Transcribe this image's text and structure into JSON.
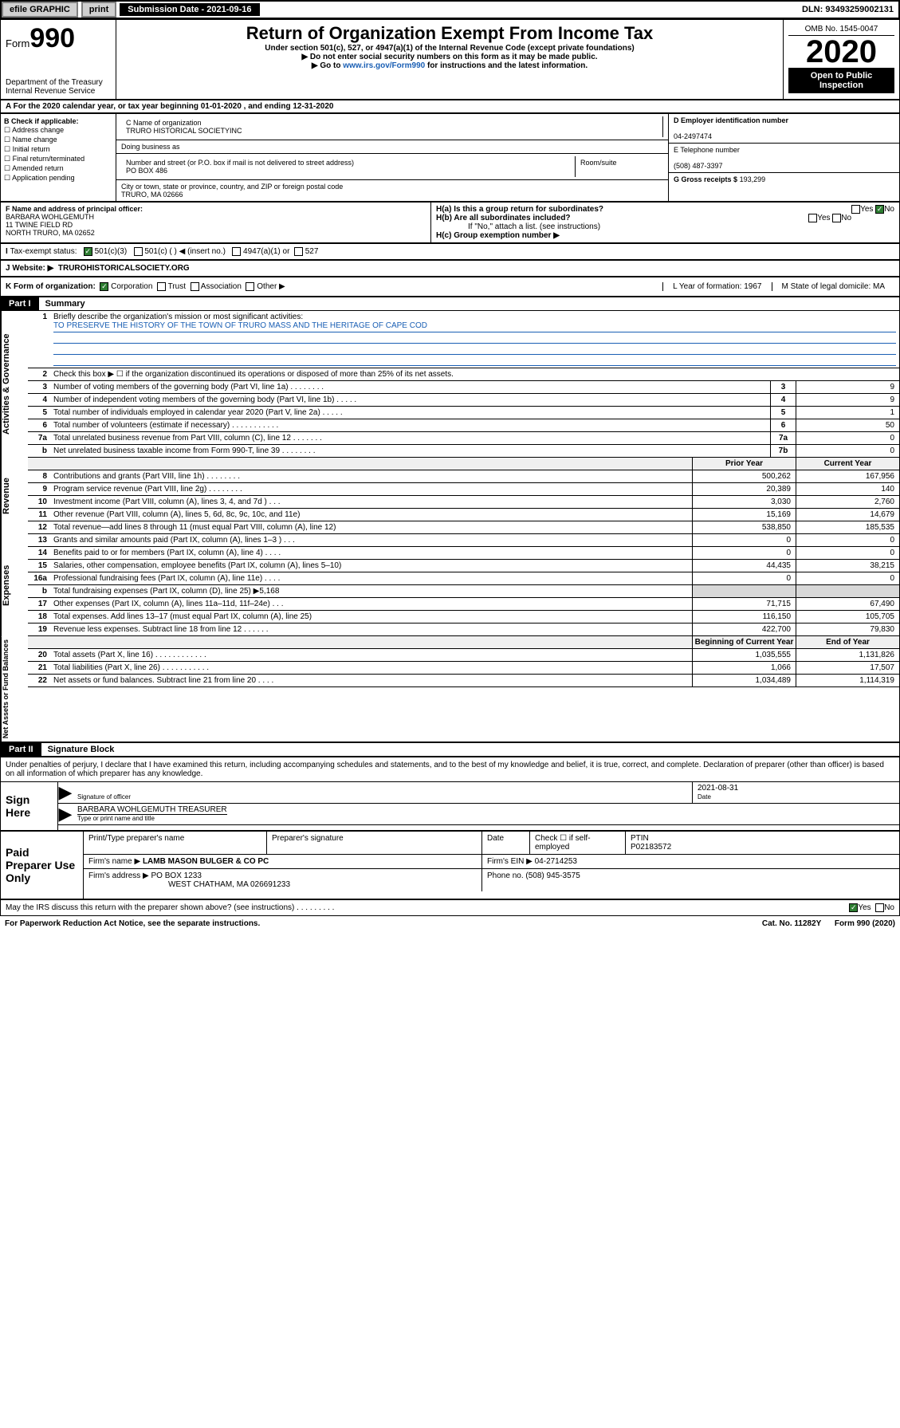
{
  "top": {
    "efile": "efile GRAPHIC",
    "print": "print",
    "submission": "Submission Date - 2021-09-16",
    "dln": "DLN: 93493259002131"
  },
  "header": {
    "form": "Form",
    "num": "990",
    "dept": "Department of the Treasury\nInternal Revenue Service",
    "title": "Return of Organization Exempt From Income Tax",
    "sub1": "Under section 501(c), 527, or 4947(a)(1) of the Internal Revenue Code (except private foundations)",
    "sub2": "Do not enter social security numbers on this form as it may be made public.",
    "sub3_pre": "Go to ",
    "sub3_link": "www.irs.gov/Form990",
    "sub3_post": " for instructions and the latest information.",
    "omb": "OMB No. 1545-0047",
    "year": "2020",
    "open": "Open to Public Inspection"
  },
  "periodA": "For the 2020 calendar year, or tax year beginning 01-01-2020    , and ending 12-31-2020",
  "boxB": {
    "title": "B Check if applicable:",
    "items": [
      "Address change",
      "Name change",
      "Initial return",
      "Final return/terminated",
      "Amended return",
      "Application pending"
    ]
  },
  "boxC": {
    "label": "C Name of organization",
    "name": "TRURO HISTORICAL SOCIETYINC",
    "dba_label": "Doing business as",
    "addr_label": "Number and street (or P.O. box if mail is not delivered to street address)",
    "room_label": "Room/suite",
    "addr": "PO BOX 486",
    "city_label": "City or town, state or province, country, and ZIP or foreign postal code",
    "city": "TRURO, MA  02666"
  },
  "boxD": {
    "label": "D Employer identification number",
    "val": "04-2497474"
  },
  "boxE": {
    "label": "E Telephone number",
    "val": "(508) 487-3397"
  },
  "boxG": {
    "label": "G Gross receipts $",
    "val": "193,299"
  },
  "boxF": {
    "label": "F  Name and address of principal officer:",
    "name": "BARBARA WOHLGEMUTH",
    "addr1": "11 TWINE FIELD RD",
    "addr2": "NORTH TRURO, MA  02652"
  },
  "boxH": {
    "a": "H(a)  Is this a group return for subordinates?",
    "b": "H(b)  Are all subordinates included?",
    "note": "If \"No,\" attach a list. (see instructions)",
    "c": "H(c)  Group exemption number ▶"
  },
  "taxI": {
    "label": "Tax-exempt status:",
    "c3": "501(c)(3)",
    "c": "501(c) (  ) ◀ (insert no.)",
    "a47": "4947(a)(1) or",
    "s527": "527"
  },
  "rowJ": {
    "label": "Website: ▶",
    "val": "TRUROHISTORICALSOCIETY.ORG"
  },
  "rowK": {
    "label": "K Form of organization:",
    "opts": [
      "Corporation",
      "Trust",
      "Association",
      "Other ▶"
    ],
    "L": "L Year of formation: 1967",
    "M": "M State of legal domicile: MA"
  },
  "part1": {
    "tag": "Part I",
    "title": "Summary"
  },
  "gov": {
    "label": "Activities & Governance",
    "l1": "Briefly describe the organization's mission or most significant activities:",
    "mission": "TO PRESERVE THE HISTORY OF THE TOWN OF TRURO MASS AND THE HERITAGE OF CAPE COD",
    "l2": "Check this box ▶ ☐  if the organization discontinued its operations or disposed of more than 25% of its net assets.",
    "rows": [
      {
        "n": "3",
        "d": "Number of voting members of the governing body (Part VI, line 1a)   .   .   .   .   .   .   .   .",
        "sm": "3",
        "v": "9"
      },
      {
        "n": "4",
        "d": "Number of independent voting members of the governing body (Part VI, line 1b)   .   .   .   .   .",
        "sm": "4",
        "v": "9"
      },
      {
        "n": "5",
        "d": "Total number of individuals employed in calendar year 2020 (Part V, line 2a)   .   .   .   .   .",
        "sm": "5",
        "v": "1"
      },
      {
        "n": "6",
        "d": "Total number of volunteers (estimate if necessary)   .   .   .   .   .   .   .   .   .   .   .",
        "sm": "6",
        "v": "50"
      },
      {
        "n": "7a",
        "d": "Total unrelated business revenue from Part VIII, column (C), line 12   .   .   .   .   .   .   .",
        "sm": "7a",
        "v": "0"
      },
      {
        "n": "b",
        "d": "Net unrelated business taxable income from Form 990-T, line 39   .   .   .   .   .   .   .   .",
        "sm": "7b",
        "v": "0"
      }
    ]
  },
  "heads": {
    "prior": "Prior Year",
    "current": "Current Year",
    "bcy": "Beginning of Current Year",
    "eoy": "End of Year"
  },
  "rev": {
    "label": "Revenue",
    "rows": [
      {
        "n": "8",
        "d": "Contributions and grants (Part VIII, line 1h)   .   .   .   .   .   .   .   .",
        "v1": "500,262",
        "v2": "167,956"
      },
      {
        "n": "9",
        "d": "Program service revenue (Part VIII, line 2g)   .   .   .   .   .   .   .   .",
        "v1": "20,389",
        "v2": "140"
      },
      {
        "n": "10",
        "d": "Investment income (Part VIII, column (A), lines 3, 4, and 7d )   .   .   .",
        "v1": "3,030",
        "v2": "2,760"
      },
      {
        "n": "11",
        "d": "Other revenue (Part VIII, column (A), lines 5, 6d, 8c, 9c, 10c, and 11e)",
        "v1": "15,169",
        "v2": "14,679"
      },
      {
        "n": "12",
        "d": "Total revenue—add lines 8 through 11 (must equal Part VIII, column (A), line 12)",
        "v1": "538,850",
        "v2": "185,535"
      }
    ]
  },
  "exp": {
    "label": "Expenses",
    "rows": [
      {
        "n": "13",
        "d": "Grants and similar amounts paid (Part IX, column (A), lines 1–3 )   .   .   .",
        "v1": "0",
        "v2": "0"
      },
      {
        "n": "14",
        "d": "Benefits paid to or for members (Part IX, column (A), line 4)   .   .   .   .",
        "v1": "0",
        "v2": "0"
      },
      {
        "n": "15",
        "d": "Salaries, other compensation, employee benefits (Part IX, column (A), lines 5–10)",
        "v1": "44,435",
        "v2": "38,215"
      },
      {
        "n": "16a",
        "d": "Professional fundraising fees (Part IX, column (A), line 11e)   .   .   .   .",
        "v1": "0",
        "v2": "0"
      },
      {
        "n": "b",
        "d": "Total fundraising expenses (Part IX, column (D), line 25) ▶5,168",
        "v1": "",
        "v2": "",
        "grey": true
      },
      {
        "n": "17",
        "d": "Other expenses (Part IX, column (A), lines 11a–11d, 11f–24e)   .   .   .",
        "v1": "71,715",
        "v2": "67,490"
      },
      {
        "n": "18",
        "d": "Total expenses. Add lines 13–17 (must equal Part IX, column (A), line 25)",
        "v1": "116,150",
        "v2": "105,705"
      },
      {
        "n": "19",
        "d": "Revenue less expenses. Subtract line 18 from line 12   .   .   .   .   .   .",
        "v1": "422,700",
        "v2": "79,830"
      }
    ]
  },
  "na": {
    "label": "Net Assets or Fund Balances",
    "rows": [
      {
        "n": "20",
        "d": "Total assets (Part X, line 16)   .   .   .   .   .   .   .   .   .   .   .   .",
        "v1": "1,035,555",
        "v2": "1,131,826"
      },
      {
        "n": "21",
        "d": "Total liabilities (Part X, line 26)   .   .   .   .   .   .   .   .   .   .   .",
        "v1": "1,066",
        "v2": "17,507"
      },
      {
        "n": "22",
        "d": "Net assets or fund balances. Subtract line 21 from line 20   .   .   .   .",
        "v1": "1,034,489",
        "v2": "1,114,319"
      }
    ]
  },
  "part2": {
    "tag": "Part II",
    "title": "Signature Block"
  },
  "perjury": "Under penalties of perjury, I declare that I have examined this return, including accompanying schedules and statements, and to the best of my knowledge and belief, it is true, correct, and complete. Declaration of preparer (other than officer) is based on all information of which preparer has any knowledge.",
  "sign": {
    "here": "Sign Here",
    "sigoff": "Signature of officer",
    "date": "2021-08-31",
    "datel": "Date",
    "name": "BARBARA WOHLGEMUTH  TREASURER",
    "namel": "Type or print name and title"
  },
  "prep": {
    "lab": "Paid Preparer Use Only",
    "h1": "Print/Type preparer's name",
    "h2": "Preparer's signature",
    "h3": "Date",
    "h4": "Check ☐ if self-employed",
    "h5": "PTIN",
    "ptin": "P02183572",
    "firm_l": "Firm's name    ▶",
    "firm": "LAMB MASON BULGER & CO PC",
    "ein_l": "Firm's EIN ▶",
    "ein": "04-2714253",
    "addr_l": "Firm's address ▶",
    "addr1": "PO BOX 1233",
    "addr2": "WEST CHATHAM, MA  026691233",
    "phone_l": "Phone no.",
    "phone": "(508) 945-3575"
  },
  "discuss": "May the IRS discuss this return with the preparer shown above? (see instructions)   .   .   .   .   .   .   .   .   .",
  "footer": {
    "pra": "For Paperwork Reduction Act Notice, see the separate instructions.",
    "cat": "Cat. No. 11282Y",
    "form": "Form 990 (2020)"
  },
  "yn": {
    "yes": "Yes",
    "no": "No"
  }
}
